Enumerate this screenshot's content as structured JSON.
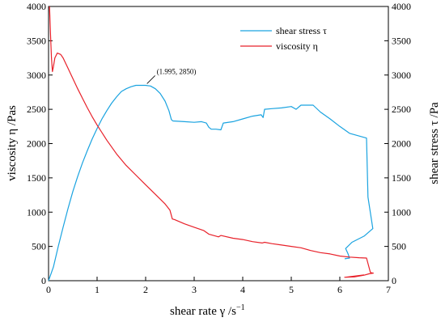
{
  "chart_data": {
    "type": "line",
    "xlabel": "shear rate γ  /s",
    "xlabel_sup": "−1",
    "ylabel_left": "viscosity η  /Pas",
    "ylabel_right": "shear stress τ  /Pa",
    "xlim": [
      0,
      7
    ],
    "ylim_left": [
      0,
      4000
    ],
    "ylim_right": [
      0,
      4000
    ],
    "x_ticks": [
      0,
      1,
      2,
      3,
      4,
      5,
      6,
      7
    ],
    "y_ticks_left": [
      0,
      500,
      1000,
      1500,
      2000,
      2500,
      3000,
      3500,
      4000
    ],
    "y_ticks_right": [
      0,
      500,
      1000,
      1500,
      2000,
      2500,
      3000,
      3500,
      4000
    ],
    "legend_position": "top-right",
    "annotation": {
      "text": "(1.995, 2850)",
      "x": 1.995,
      "y": 2850
    },
    "series": [
      {
        "name": "shear stress τ",
        "axis": "right",
        "color": "#1aa3e0",
        "points": [
          [
            0,
            0
          ],
          [
            0.1,
            200
          ],
          [
            0.2,
            500
          ],
          [
            0.3,
            780
          ],
          [
            0.4,
            1050
          ],
          [
            0.5,
            1300
          ],
          [
            0.6,
            1520
          ],
          [
            0.7,
            1720
          ],
          [
            0.8,
            1900
          ],
          [
            0.9,
            2070
          ],
          [
            1.0,
            2220
          ],
          [
            1.1,
            2360
          ],
          [
            1.2,
            2480
          ],
          [
            1.3,
            2590
          ],
          [
            1.4,
            2680
          ],
          [
            1.5,
            2760
          ],
          [
            1.6,
            2800
          ],
          [
            1.7,
            2830
          ],
          [
            1.8,
            2850
          ],
          [
            1.995,
            2850
          ],
          [
            2.1,
            2840
          ],
          [
            2.2,
            2800
          ],
          [
            2.3,
            2730
          ],
          [
            2.4,
            2620
          ],
          [
            2.48,
            2480
          ],
          [
            2.53,
            2350
          ],
          [
            2.56,
            2330
          ],
          [
            2.8,
            2320
          ],
          [
            3.0,
            2310
          ],
          [
            3.15,
            2320
          ],
          [
            3.25,
            2300
          ],
          [
            3.3,
            2240
          ],
          [
            3.35,
            2210
          ],
          [
            3.45,
            2210
          ],
          [
            3.55,
            2200
          ],
          [
            3.6,
            2300
          ],
          [
            3.8,
            2320
          ],
          [
            4.0,
            2360
          ],
          [
            4.2,
            2400
          ],
          [
            4.38,
            2420
          ],
          [
            4.42,
            2380
          ],
          [
            4.45,
            2500
          ],
          [
            4.6,
            2510
          ],
          [
            4.8,
            2520
          ],
          [
            5.0,
            2540
          ],
          [
            5.1,
            2500
          ],
          [
            5.2,
            2560
          ],
          [
            5.45,
            2560
          ],
          [
            5.6,
            2460
          ],
          [
            5.8,
            2360
          ],
          [
            6.0,
            2250
          ],
          [
            6.2,
            2150
          ],
          [
            6.55,
            2080
          ],
          [
            6.58,
            1220
          ],
          [
            6.68,
            760
          ],
          [
            6.5,
            650
          ],
          [
            6.25,
            560
          ],
          [
            6.12,
            470
          ],
          [
            6.17,
            390
          ],
          [
            6.2,
            330
          ],
          [
            6.1,
            320
          ]
        ]
      },
      {
        "name": "viscosity η",
        "axis": "left",
        "color": "#e8212a",
        "points": [
          [
            0.02,
            4000
          ],
          [
            0.04,
            3600
          ],
          [
            0.06,
            3250
          ],
          [
            0.08,
            3050
          ],
          [
            0.1,
            3120
          ],
          [
            0.13,
            3250
          ],
          [
            0.18,
            3320
          ],
          [
            0.25,
            3300
          ],
          [
            0.3,
            3250
          ],
          [
            0.4,
            3100
          ],
          [
            0.5,
            2950
          ],
          [
            0.6,
            2800
          ],
          [
            0.7,
            2660
          ],
          [
            0.8,
            2520
          ],
          [
            0.9,
            2390
          ],
          [
            1.0,
            2270
          ],
          [
            1.2,
            2050
          ],
          [
            1.4,
            1850
          ],
          [
            1.6,
            1680
          ],
          [
            1.8,
            1540
          ],
          [
            2.0,
            1400
          ],
          [
            2.2,
            1260
          ],
          [
            2.4,
            1120
          ],
          [
            2.5,
            1030
          ],
          [
            2.55,
            900
          ],
          [
            2.6,
            890
          ],
          [
            2.8,
            830
          ],
          [
            3.0,
            780
          ],
          [
            3.2,
            730
          ],
          [
            3.3,
            680
          ],
          [
            3.45,
            650
          ],
          [
            3.5,
            640
          ],
          [
            3.55,
            660
          ],
          [
            3.8,
            620
          ],
          [
            4.0,
            600
          ],
          [
            4.2,
            570
          ],
          [
            4.4,
            550
          ],
          [
            4.45,
            560
          ],
          [
            4.6,
            540
          ],
          [
            4.8,
            520
          ],
          [
            5.0,
            500
          ],
          [
            5.2,
            480
          ],
          [
            5.4,
            440
          ],
          [
            5.6,
            410
          ],
          [
            5.8,
            390
          ],
          [
            6.0,
            360
          ],
          [
            6.2,
            345
          ],
          [
            6.4,
            335
          ],
          [
            6.55,
            330
          ],
          [
            6.6,
            200
          ],
          [
            6.63,
            120
          ],
          [
            6.69,
            110
          ],
          [
            6.6,
            100
          ],
          [
            6.5,
            80
          ],
          [
            6.3,
            55
          ],
          [
            6.1,
            50
          ],
          [
            6.5,
            85
          ]
        ]
      }
    ]
  }
}
